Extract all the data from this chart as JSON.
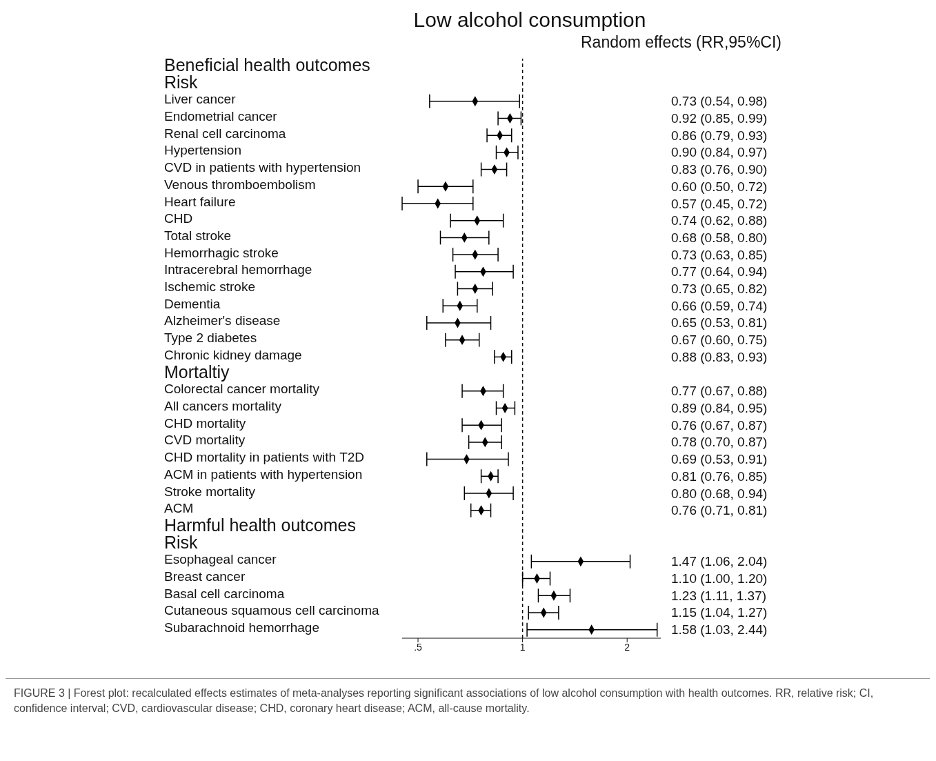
{
  "chart_data": {
    "type": "scatter",
    "orientation": "horizontal",
    "title": "Low alcohol consumption",
    "subtitle": "Random effects (RR,95%CI)",
    "categories": [
      "Beneficial health outcomes",
      "Risk",
      "Liver cancer",
      "Endometrial cancer",
      "Renal cell carcinoma",
      "Hypertension",
      "CVD in patients with hypertension",
      "Venous thromboembolism",
      "Heart failure",
      "CHD",
      "Total  stroke",
      "Hemorrhagic stroke",
      "Intracerebral hemorrhage",
      "Ischemic stroke",
      "Dementia",
      "Alzheimer's disease",
      "Type 2 diabetes",
      "Chronic kidney damage",
      "Mortaltiy",
      "Colorectal cancer mortality",
      "All cancers mortality",
      "CHD mortality",
      "CVD mortality",
      "CHD mortality in patients with T2D",
      "ACM in patients with hypertension",
      "Stroke mortality",
      "ACM",
      "Harmful health outcomes",
      "Risk",
      "Esophageal cancer",
      "Breast cancer",
      "Basal cell carcinoma",
      "Cutaneous squamous cell carcinoma",
      "Subarachnoid hemorrhage"
    ],
    "values": [
      null,
      null,
      0.73,
      0.92,
      0.86,
      0.9,
      0.83,
      0.6,
      0.57,
      0.74,
      0.68,
      0.73,
      0.77,
      0.73,
      0.66,
      0.65,
      0.67,
      0.88,
      null,
      0.77,
      0.89,
      0.76,
      0.78,
      0.69,
      0.81,
      0.8,
      0.76,
      null,
      null,
      1.47,
      1.1,
      1.23,
      1.15,
      1.58
    ],
    "errors": [
      null,
      null,
      [
        0.54,
        0.98
      ],
      [
        0.85,
        0.99
      ],
      [
        0.79,
        0.93
      ],
      [
        0.84,
        0.97
      ],
      [
        0.76,
        0.9
      ],
      [
        0.5,
        0.72
      ],
      [
        0.45,
        0.72
      ],
      [
        0.62,
        0.88
      ],
      [
        0.58,
        0.8
      ],
      [
        0.63,
        0.85
      ],
      [
        0.64,
        0.94
      ],
      [
        0.65,
        0.82
      ],
      [
        0.59,
        0.74
      ],
      [
        0.53,
        0.81
      ],
      [
        0.6,
        0.75
      ],
      [
        0.83,
        0.93
      ],
      null,
      [
        0.67,
        0.88
      ],
      [
        0.84,
        0.95
      ],
      [
        0.67,
        0.87
      ],
      [
        0.7,
        0.87
      ],
      [
        0.53,
        0.91
      ],
      [
        0.76,
        0.85
      ],
      [
        0.68,
        0.94
      ],
      [
        0.71,
        0.81
      ],
      null,
      null,
      [
        1.06,
        2.04
      ],
      [
        1.0,
        1.2
      ],
      [
        1.11,
        1.37
      ],
      [
        1.04,
        1.27
      ],
      [
        1.03,
        2.44
      ]
    ],
    "value_labels": [
      null,
      null,
      "0.73 (0.54, 0.98)",
      "0.92 (0.85, 0.99)",
      "0.86 (0.79, 0.93)",
      "0.90 (0.84, 0.97)",
      "0.83 (0.76, 0.90)",
      "0.60 (0.50, 0.72)",
      "0.57 (0.45, 0.72)",
      "0.74 (0.62, 0.88)",
      "0.68 (0.58, 0.80)",
      "0.73 (0.63, 0.85)",
      "0.77 (0.64, 0.94)",
      "0.73 (0.65, 0.82)",
      "0.66 (0.59, 0.74)",
      "0.65 (0.53, 0.81)",
      "0.67 (0.60, 0.75)",
      "0.88 (0.83, 0.93)",
      null,
      "0.77 (0.67, 0.88)",
      "0.89 (0.84, 0.95)",
      "0.76 (0.67, 0.87)",
      "0.78 (0.70, 0.87)",
      "0.69 (0.53, 0.91)",
      "0.81 (0.76, 0.85)",
      "0.80 (0.68, 0.94)",
      "0.76 (0.71, 0.81)",
      null,
      null,
      "1.47 (1.06, 2.04)",
      "1.10 (1.00, 1.20)",
      "1.23 (1.11, 1.37)",
      "1.15 (1.04, 1.27)",
      "1.58 (1.03, 2.44)"
    ],
    "color": "#000000",
    "marker": "diamond",
    "log": "x",
    "xlim": [
      0.45,
      2.5
    ],
    "xticks": [
      {
        "value": 0.5,
        "label": ".5"
      },
      1,
      2
    ],
    "ref_lines": [
      {
        "axis": "x",
        "value": 1,
        "line_style": "dashed"
      }
    ],
    "annotations": [
      "FIGURE 3 | Forest plot: recalculated effects estimates of meta-analyses reporting significant associations of low alcohol consumption with health outcomes. RR, relative risk; CI, confidence interval; CVD, cardiovascular disease; CHD, coronary heart disease; ACM, all-cause mortality."
    ]
  }
}
